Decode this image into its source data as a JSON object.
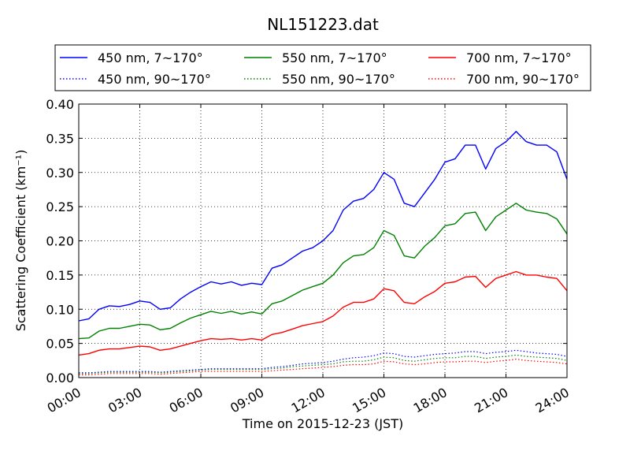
{
  "chart_data": {
    "type": "line",
    "title": "NL151223.dat",
    "xlabel": "Time on 2015-12-23 (JST)",
    "ylabel": "Scattering Coefficient (km⁻¹)",
    "xlim": [
      "00:00",
      "24:00"
    ],
    "ylim": [
      0,
      0.4
    ],
    "x_ticks": [
      "00:00",
      "03:00",
      "06:00",
      "09:00",
      "12:00",
      "15:00",
      "18:00",
      "21:00",
      "24:00"
    ],
    "y_ticks": [
      "0.00",
      "0.05",
      "0.10",
      "0.15",
      "0.20",
      "0.25",
      "0.30",
      "0.35",
      "0.40"
    ],
    "grid": true,
    "legend_position": "top",
    "x": [
      "00:00",
      "00:30",
      "01:00",
      "01:30",
      "02:00",
      "02:30",
      "03:00",
      "03:30",
      "04:00",
      "04:30",
      "05:00",
      "05:30",
      "06:00",
      "06:30",
      "07:00",
      "07:30",
      "08:00",
      "08:30",
      "09:00",
      "09:30",
      "10:00",
      "10:30",
      "11:00",
      "11:30",
      "12:00",
      "12:30",
      "13:00",
      "13:30",
      "14:00",
      "14:30",
      "15:00",
      "15:30",
      "16:00",
      "16:30",
      "17:00",
      "17:30",
      "18:00",
      "18:30",
      "19:00",
      "19:30",
      "20:00",
      "20:30",
      "21:00",
      "21:30",
      "22:00",
      "22:30",
      "23:00",
      "23:30",
      "24:00"
    ],
    "series": [
      {
        "name": "450 nm, 7~170°",
        "color": "#0000ff",
        "style": "solid",
        "values": [
          0.083,
          0.086,
          0.1,
          0.105,
          0.104,
          0.107,
          0.112,
          0.11,
          0.1,
          0.102,
          0.115,
          0.125,
          0.133,
          0.14,
          0.137,
          0.14,
          0.135,
          0.138,
          0.136,
          0.16,
          0.165,
          0.175,
          0.185,
          0.19,
          0.2,
          0.215,
          0.245,
          0.258,
          0.262,
          0.275,
          0.3,
          0.29,
          0.255,
          0.25,
          0.27,
          0.29,
          0.315,
          0.32,
          0.34,
          0.34,
          0.305,
          0.335,
          0.345,
          0.36,
          0.345,
          0.34,
          0.34,
          0.33,
          0.29
        ]
      },
      {
        "name": "550 nm, 7~170°",
        "color": "#008000",
        "style": "solid",
        "values": [
          0.057,
          0.058,
          0.068,
          0.072,
          0.072,
          0.075,
          0.078,
          0.077,
          0.07,
          0.072,
          0.08,
          0.087,
          0.092,
          0.097,
          0.094,
          0.097,
          0.093,
          0.096,
          0.093,
          0.108,
          0.112,
          0.12,
          0.128,
          0.133,
          0.138,
          0.15,
          0.168,
          0.178,
          0.18,
          0.19,
          0.215,
          0.208,
          0.178,
          0.175,
          0.192,
          0.205,
          0.222,
          0.225,
          0.24,
          0.242,
          0.215,
          0.235,
          0.245,
          0.255,
          0.245,
          0.242,
          0.24,
          0.232,
          0.21
        ]
      },
      {
        "name": "700 nm, 7~170°",
        "color": "#ff0000",
        "style": "solid",
        "values": [
          0.033,
          0.035,
          0.04,
          0.042,
          0.042,
          0.044,
          0.046,
          0.045,
          0.04,
          0.042,
          0.046,
          0.05,
          0.054,
          0.057,
          0.056,
          0.057,
          0.055,
          0.057,
          0.055,
          0.063,
          0.066,
          0.071,
          0.076,
          0.079,
          0.082,
          0.09,
          0.103,
          0.11,
          0.11,
          0.115,
          0.13,
          0.127,
          0.11,
          0.108,
          0.118,
          0.126,
          0.138,
          0.14,
          0.147,
          0.148,
          0.132,
          0.145,
          0.15,
          0.155,
          0.15,
          0.15,
          0.147,
          0.145,
          0.127
        ]
      },
      {
        "name": "450 nm, 90~170°",
        "color": "#0000ff",
        "style": "dotted",
        "values": [
          0.007,
          0.007,
          0.008,
          0.009,
          0.009,
          0.009,
          0.009,
          0.009,
          0.008,
          0.009,
          0.01,
          0.011,
          0.012,
          0.013,
          0.013,
          0.013,
          0.013,
          0.013,
          0.013,
          0.015,
          0.016,
          0.018,
          0.02,
          0.021,
          0.022,
          0.024,
          0.027,
          0.029,
          0.03,
          0.032,
          0.036,
          0.035,
          0.031,
          0.03,
          0.032,
          0.034,
          0.035,
          0.036,
          0.038,
          0.038,
          0.035,
          0.037,
          0.038,
          0.04,
          0.038,
          0.036,
          0.035,
          0.034,
          0.031
        ]
      },
      {
        "name": "550 nm, 90~170°",
        "color": "#008000",
        "style": "dotted",
        "values": [
          0.006,
          0.006,
          0.007,
          0.008,
          0.008,
          0.008,
          0.008,
          0.008,
          0.007,
          0.008,
          0.009,
          0.01,
          0.011,
          0.012,
          0.012,
          0.012,
          0.012,
          0.012,
          0.012,
          0.013,
          0.014,
          0.016,
          0.017,
          0.018,
          0.019,
          0.02,
          0.023,
          0.024,
          0.024,
          0.026,
          0.03,
          0.029,
          0.025,
          0.024,
          0.026,
          0.028,
          0.029,
          0.029,
          0.031,
          0.031,
          0.028,
          0.03,
          0.031,
          0.033,
          0.031,
          0.03,
          0.029,
          0.028,
          0.025
        ]
      },
      {
        "name": "700 nm, 90~170°",
        "color": "#ff0000",
        "style": "dotted",
        "values": [
          0.004,
          0.004,
          0.005,
          0.006,
          0.006,
          0.006,
          0.006,
          0.006,
          0.005,
          0.006,
          0.007,
          0.008,
          0.009,
          0.009,
          0.009,
          0.009,
          0.009,
          0.009,
          0.009,
          0.01,
          0.011,
          0.012,
          0.013,
          0.014,
          0.015,
          0.016,
          0.018,
          0.019,
          0.019,
          0.02,
          0.024,
          0.023,
          0.02,
          0.019,
          0.02,
          0.022,
          0.023,
          0.023,
          0.024,
          0.024,
          0.022,
          0.024,
          0.025,
          0.027,
          0.025,
          0.024,
          0.023,
          0.022,
          0.02
        ]
      }
    ]
  }
}
